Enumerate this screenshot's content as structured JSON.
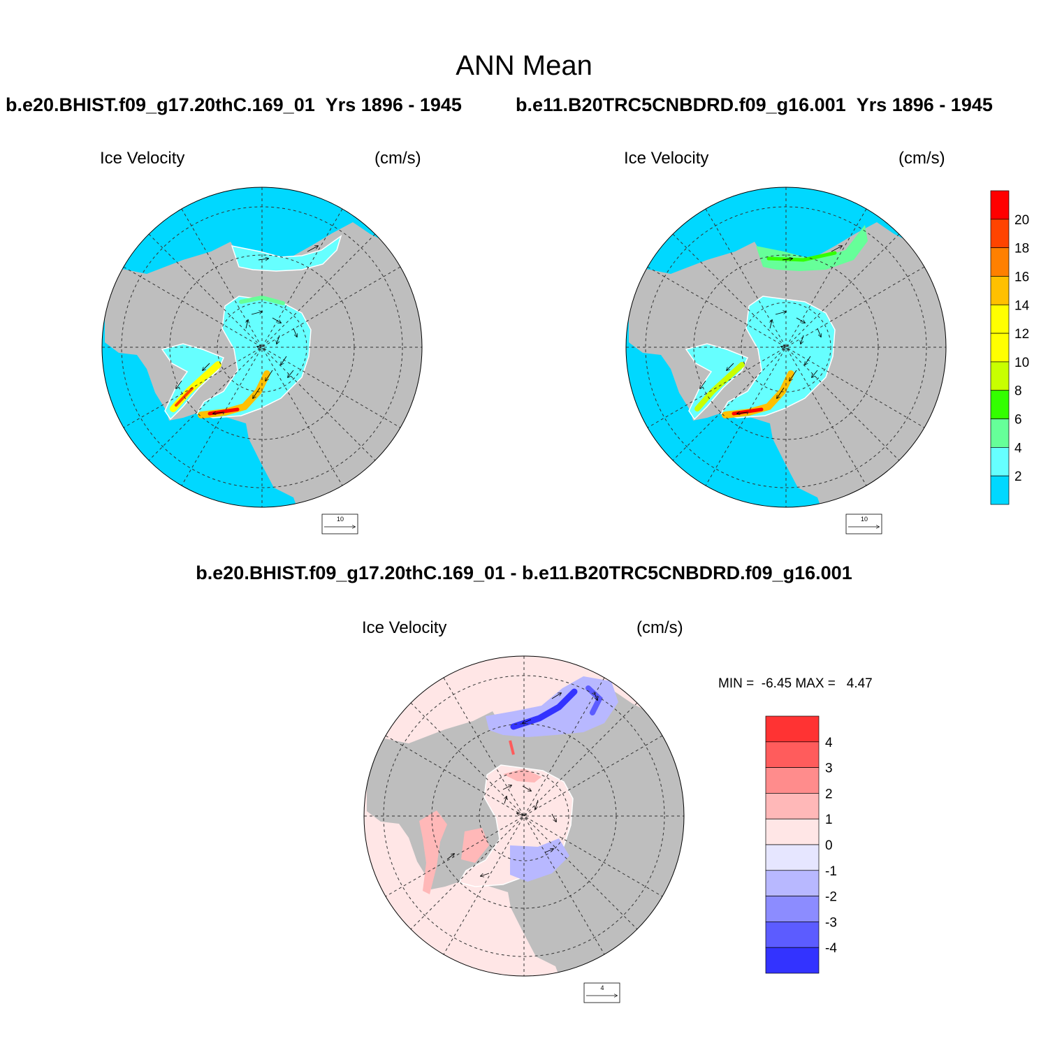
{
  "title": "ANN Mean",
  "panels": [
    {
      "case": "b.e20.BHIST.f09_g17.20thC.169_01",
      "years": "Yrs 1896 - 1945",
      "variable": "Ice Velocity",
      "units": "(cm/s)",
      "ref_vector": "10"
    },
    {
      "case": "b.e11.B20TRC5CNBDRD.f09_g16.001",
      "years": "Yrs 1896 - 1945",
      "variable": "Ice Velocity",
      "units": "(cm/s)",
      "ref_vector": "10"
    },
    {
      "case": "b.e20.BHIST.f09_g17.20thC.169_01 - b.e11.B20TRC5CNBDRD.f09_g16.001",
      "variable": "Ice Velocity",
      "units": "(cm/s)",
      "ref_vector": "4",
      "min_label": "MIN =",
      "min": "-6.45",
      "max_label": "MAX =",
      "max": "4.47"
    }
  ],
  "colorbar_main": {
    "labels": [
      "20",
      "18",
      "16",
      "14",
      "12",
      "10",
      "8",
      "6",
      "4",
      "2"
    ],
    "colors": [
      "#ff0000",
      "#ff4400",
      "#ff8000",
      "#ffc000",
      "#ffff00",
      "#ffff00",
      "#c8ff00",
      "#33ff00",
      "#66ff99",
      "#66ffff",
      "#00d8ff"
    ]
  },
  "colorbar_diff": {
    "labels": [
      "4",
      "3",
      "2",
      "1",
      "0",
      "-1",
      "-2",
      "-3",
      "-4"
    ],
    "colors": [
      "#ff3333",
      "#ff5c5c",
      "#ff8c8c",
      "#ffb8b8",
      "#ffe6e6",
      "#e6e6ff",
      "#b8b8ff",
      "#8c8cff",
      "#5c5cff",
      "#3333ff"
    ]
  },
  "map_colors": {
    "land": "#bebebe",
    "ocean_main": "#00d8ff",
    "ocean_diff": "#ffe6e6",
    "ice_main": "#66ffff",
    "ice_diff_neg": "#b8b8ff",
    "ice_diff_pos": "#ffb8b8"
  }
}
